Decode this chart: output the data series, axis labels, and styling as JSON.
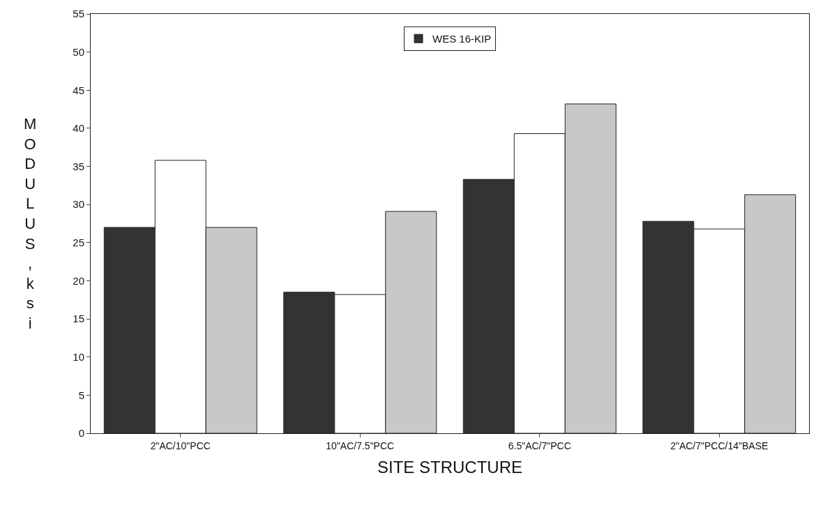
{
  "chart_data": {
    "type": "bar",
    "xlabel": "SITE STRUCTURE",
    "ylabel": "MODULUS, ksi",
    "categories": [
      "2\"AC/10\"PCC",
      "10\"AC/7.5\"PCC",
      "6.5\"AC/7\"PCC",
      "2\"AC/7\"PCC/14\"BASE"
    ],
    "series": [
      {
        "name": "WES 16-KIP",
        "color": "#333333",
        "values": [
          27.0,
          18.5,
          33.3,
          27.8
        ]
      },
      {
        "color": "#ffffff",
        "values": [
          35.8,
          18.2,
          39.3,
          26.8
        ]
      },
      {
        "color": "#c8c8c8",
        "values": [
          27.0,
          29.1,
          43.2,
          31.3
        ]
      }
    ],
    "ylim": [
      0,
      55
    ],
    "yticks": [
      0,
      5,
      10,
      15,
      20,
      25,
      30,
      35,
      40,
      45,
      50,
      55
    ],
    "legend": "top"
  }
}
